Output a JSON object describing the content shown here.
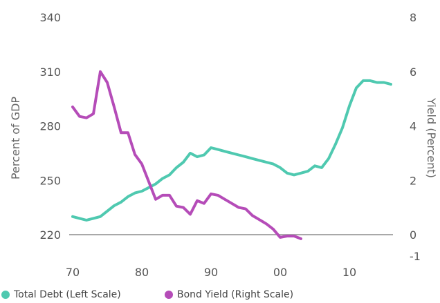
{
  "chart_data": {
    "type": "line",
    "title": "",
    "xlabel": "",
    "ylabel_left": "Percent of GDP",
    "ylabel_right": "Yield (Percent)",
    "x_tick_labels": [
      "70",
      "80",
      "90",
      "00",
      "10"
    ],
    "x_tick_values": [
      1970,
      1980,
      1990,
      2000,
      2010
    ],
    "left_ticks": [
      220,
      250,
      280,
      310,
      340
    ],
    "right_ticks": [
      -1,
      0,
      2,
      4,
      6,
      8
    ],
    "left_ylim": [
      220,
      340
    ],
    "right_ylim": [
      0,
      8
    ],
    "grid": false,
    "legend_position": "bottom-left",
    "x": [
      1970,
      1971,
      1972,
      1973,
      1974,
      1975,
      1976,
      1977,
      1978,
      1979,
      1980,
      1981,
      1982,
      1983,
      1984,
      1985,
      1986,
      1987,
      1988,
      1989,
      1990,
      1991,
      1992,
      1993,
      1994,
      1995,
      1996,
      1997,
      1998,
      1999,
      2000,
      2001,
      2002,
      2003,
      2004,
      2005,
      2006,
      2007,
      2008,
      2009,
      2010,
      2011,
      2012,
      2013,
      2014,
      2015,
      2016
    ],
    "series": [
      {
        "name": "Total Debt (Left Scale)",
        "axis": "left",
        "color": "#4fc9b0",
        "values": [
          230,
          229,
          228,
          229,
          230,
          233,
          236,
          238,
          241,
          243,
          244,
          246,
          248,
          251,
          253,
          257,
          260,
          265,
          263,
          264,
          268,
          267,
          266,
          265,
          264,
          263,
          262,
          261,
          260,
          259,
          257,
          254,
          253,
          254,
          255,
          258,
          257,
          262,
          270,
          279,
          291,
          301,
          305,
          305,
          304,
          304,
          303
        ]
      },
      {
        "name": "Bond Yield (Right Scale)",
        "axis": "right",
        "color": "#b54cb8",
        "values": [
          4.7,
          4.35,
          4.3,
          4.45,
          6.0,
          5.6,
          4.7,
          3.75,
          3.75,
          2.95,
          2.6,
          1.95,
          1.3,
          1.45,
          1.45,
          1.05,
          1.0,
          0.75,
          1.25,
          1.15,
          1.5,
          1.45,
          1.3,
          1.15,
          1.0,
          0.95,
          0.7,
          0.55,
          0.4,
          0.2,
          -0.1,
          -0.05,
          -0.05,
          -0.15,
          null,
          null,
          null,
          null,
          null,
          null,
          null,
          null,
          null,
          null,
          null,
          null,
          null
        ]
      }
    ]
  }
}
